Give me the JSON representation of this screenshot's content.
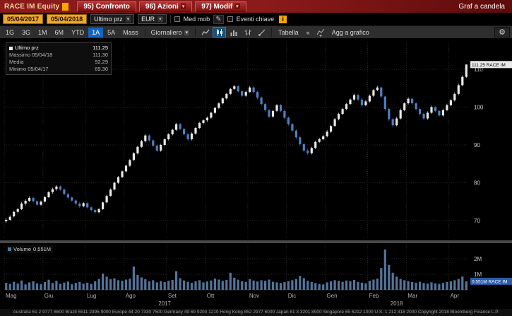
{
  "top_bar": {
    "security": "RACE IM Equity",
    "menu_items": [
      {
        "label": "95) Confronto",
        "has_dropdown": false
      },
      {
        "label": "96) Azioni",
        "has_dropdown": true
      },
      {
        "label": "97) Modif",
        "has_dropdown": true
      }
    ],
    "right_label": "Graf a candela"
  },
  "controls": {
    "date_from": "05/04/2017",
    "date_to": "05/04/2018",
    "price_field": "Ultimo prz",
    "currency": "EUR",
    "med_mob_label": "Med mob",
    "eventi_label": "Eventi chiave",
    "info_label": "i"
  },
  "toolbar": {
    "periods": [
      "1G",
      "3G",
      "1M",
      "6M",
      "YTD",
      "1A",
      "5A",
      "Mass"
    ],
    "active_period": "1A",
    "frequency": "Giornaliero",
    "table_label": "Tabella",
    "collapse_label": "«",
    "add_chart_label": "Agg a grafico"
  },
  "legend": {
    "last_label": "Ultimo prz",
    "last_value": "111.25",
    "high_label": "Massimo 05/04/18",
    "high_value": "111.30",
    "mean_label": "Media",
    "mean_value": "92.29",
    "low_label": "Minimo 05/04/17",
    "low_value": "69.30"
  },
  "price_axis": {
    "ticks": [
      70,
      80,
      90,
      100,
      110
    ],
    "last_price_label": "111.25 RACE IM"
  },
  "volume": {
    "legend_label": "Volume",
    "legend_value": "0.551M",
    "ticks": [
      {
        "label": "1M",
        "value": 1
      },
      {
        "label": "2M",
        "value": 2
      }
    ],
    "last_label": "0.551M RACE IM"
  },
  "x_axis": {
    "months": [
      "Mag",
      "Giu",
      "Lug",
      "Ago",
      "Set",
      "Ott",
      "Nov",
      "Dic",
      "Gen",
      "Feb",
      "Mar",
      "Apr"
    ],
    "years": [
      "2017",
      "2018"
    ]
  },
  "footer_text": "Australia 61 2 9777 8600 Brazil 5511 2395 9000 Europe 44 20 7330 7500 Germany 49 69 9204 1210 Hong Kong 852 2977 6000 Japan 81 3 3201 8900 Singapore 65 6212 1000 U.S. 1 212 318 2000 Copyright 2018 Bloomberg Finance L.P.",
  "colors": {
    "accent_blue": "#1565c0",
    "amber": "#f7a600",
    "topbar_red": "#8b1a1a"
  },
  "chart_data": {
    "type": "candlestick+volume",
    "title": "RACE IM Equity — Graf a candela (1A, Giornaliero)",
    "currency": "EUR",
    "price_range": [
      65,
      117
    ],
    "volume_range_m": [
      0,
      2.6
    ],
    "up_color": "#e8e8e8",
    "down_color": "#4f7fc2",
    "volume_color": "#54749c",
    "month_start_indices": [
      0,
      10,
      21,
      31,
      42,
      52,
      63,
      73,
      83,
      94,
      104,
      115
    ],
    "candles": [
      [
        69.8,
        70.6,
        69.3,
        70.2
      ],
      [
        70.2,
        71.4,
        69.9,
        71.0
      ],
      [
        71.1,
        72.6,
        70.8,
        72.3
      ],
      [
        72.3,
        73.4,
        71.9,
        73.0
      ],
      [
        73.0,
        74.9,
        72.8,
        74.5
      ],
      [
        74.5,
        75.6,
        74.0,
        75.2
      ],
      [
        75.2,
        76.4,
        74.9,
        76.0
      ],
      [
        76.0,
        76.3,
        74.8,
        75.1
      ],
      [
        75.1,
        75.4,
        73.9,
        74.2
      ],
      [
        74.2,
        75.3,
        73.9,
        75.0
      ],
      [
        75.0,
        76.5,
        74.8,
        76.2
      ],
      [
        76.2,
        77.8,
        76.0,
        77.5
      ],
      [
        77.5,
        78.7,
        77.1,
        78.3
      ],
      [
        78.3,
        79.4,
        77.9,
        79.0
      ],
      [
        79.0,
        79.3,
        77.9,
        78.2
      ],
      [
        78.2,
        78.5,
        76.7,
        77.0
      ],
      [
        77.0,
        77.3,
        75.8,
        76.1
      ],
      [
        76.1,
        76.4,
        75.0,
        75.3
      ],
      [
        75.3,
        75.6,
        74.2,
        74.5
      ],
      [
        74.5,
        74.8,
        73.4,
        73.8
      ],
      [
        73.8,
        74.9,
        73.5,
        74.6
      ],
      [
        74.6,
        74.8,
        73.2,
        73.5
      ],
      [
        73.5,
        73.8,
        72.4,
        72.8
      ],
      [
        72.8,
        73.1,
        71.8,
        72.2
      ],
      [
        72.2,
        73.3,
        71.9,
        73.0
      ],
      [
        73.0,
        75.0,
        72.8,
        74.8
      ],
      [
        74.8,
        76.8,
        74.6,
        76.5
      ],
      [
        76.5,
        78.5,
        76.3,
        78.2
      ],
      [
        78.2,
        80.3,
        78.0,
        80.0
      ],
      [
        80.0,
        81.8,
        79.7,
        81.5
      ],
      [
        81.5,
        83.3,
        81.2,
        83.0
      ],
      [
        83.0,
        84.8,
        82.7,
        84.5
      ],
      [
        84.5,
        86.3,
        84.2,
        86.0
      ],
      [
        86.0,
        88.1,
        85.8,
        87.8
      ],
      [
        87.8,
        89.8,
        87.5,
        89.5
      ],
      [
        89.5,
        91.3,
        89.2,
        91.0
      ],
      [
        91.0,
        92.8,
        90.7,
        92.5
      ],
      [
        92.5,
        92.8,
        90.9,
        91.2
      ],
      [
        91.2,
        91.5,
        89.5,
        89.8
      ],
      [
        89.8,
        90.1,
        88.1,
        88.5
      ],
      [
        88.5,
        90.3,
        88.2,
        90.0
      ],
      [
        90.0,
        91.8,
        89.7,
        91.5
      ],
      [
        91.5,
        93.1,
        91.2,
        92.8
      ],
      [
        92.8,
        94.3,
        92.5,
        94.0
      ],
      [
        94.0,
        95.8,
        93.7,
        95.5
      ],
      [
        95.5,
        95.8,
        93.9,
        94.2
      ],
      [
        94.2,
        94.5,
        92.5,
        92.8
      ],
      [
        92.8,
        93.1,
        91.1,
        91.5
      ],
      [
        91.5,
        93.3,
        91.2,
        93.0
      ],
      [
        93.0,
        94.8,
        92.7,
        94.5
      ],
      [
        94.5,
        96.1,
        94.2,
        95.8
      ],
      [
        95.8,
        96.8,
        95.4,
        96.5
      ],
      [
        96.5,
        97.5,
        96.1,
        97.2
      ],
      [
        97.2,
        98.8,
        96.9,
        98.5
      ],
      [
        98.5,
        100.1,
        98.2,
        99.8
      ],
      [
        99.8,
        101.3,
        99.5,
        101.0
      ],
      [
        101.0,
        102.6,
        100.7,
        102.3
      ],
      [
        102.3,
        103.8,
        102.0,
        103.5
      ],
      [
        103.5,
        105.1,
        103.2,
        104.8
      ],
      [
        104.8,
        105.9,
        104.5,
        105.5
      ],
      [
        105.5,
        105.8,
        103.9,
        104.2
      ],
      [
        104.2,
        104.5,
        102.6,
        103.0
      ],
      [
        103.0,
        104.4,
        102.7,
        104.0
      ],
      [
        104.0,
        105.6,
        103.8,
        105.2
      ],
      [
        105.2,
        105.5,
        103.6,
        104.0
      ],
      [
        104.0,
        104.3,
        102.1,
        102.5
      ],
      [
        102.5,
        102.8,
        100.4,
        100.8
      ],
      [
        100.8,
        101.1,
        98.8,
        99.2
      ],
      [
        99.2,
        99.5,
        97.1,
        97.5
      ],
      [
        97.5,
        99.3,
        97.2,
        99.0
      ],
      [
        99.0,
        100.8,
        98.7,
        100.5
      ],
      [
        100.5,
        100.8,
        98.6,
        99.0
      ],
      [
        99.0,
        99.3,
        96.8,
        97.2
      ],
      [
        97.2,
        97.5,
        95.1,
        95.5
      ],
      [
        95.5,
        95.8,
        93.4,
        93.8
      ],
      [
        93.8,
        94.1,
        91.6,
        92.0
      ],
      [
        92.0,
        92.3,
        89.8,
        90.2
      ],
      [
        90.2,
        90.5,
        88.1,
        88.5
      ],
      [
        88.5,
        88.9,
        87.3,
        87.8
      ],
      [
        87.8,
        89.5,
        87.5,
        89.2
      ],
      [
        89.2,
        91.1,
        88.9,
        90.8
      ],
      [
        90.8,
        91.9,
        90.5,
        91.5
      ],
      [
        91.5,
        92.7,
        91.2,
        92.3
      ],
      [
        92.3,
        93.9,
        92.0,
        93.5
      ],
      [
        93.5,
        95.3,
        93.2,
        95.0
      ],
      [
        95.0,
        97.1,
        94.8,
        96.8
      ],
      [
        96.8,
        98.5,
        96.5,
        98.2
      ],
      [
        98.2,
        99.8,
        97.9,
        99.5
      ],
      [
        99.5,
        101.1,
        99.2,
        100.8
      ],
      [
        100.8,
        102.3,
        100.5,
        102.0
      ],
      [
        102.0,
        103.5,
        101.7,
        103.2
      ],
      [
        103.2,
        103.5,
        101.6,
        102.0
      ],
      [
        102.0,
        102.3,
        100.1,
        100.5
      ],
      [
        100.5,
        101.9,
        100.2,
        101.5
      ],
      [
        101.5,
        103.3,
        101.2,
        103.0
      ],
      [
        103.0,
        104.8,
        102.7,
        104.5
      ],
      [
        104.5,
        105.6,
        104.2,
        105.2
      ],
      [
        105.2,
        105.4,
        102.4,
        102.8
      ],
      [
        102.8,
        103.0,
        99.0,
        99.5
      ],
      [
        99.5,
        99.8,
        96.3,
        96.8
      ],
      [
        96.8,
        97.1,
        94.7,
        95.2
      ],
      [
        95.2,
        97.4,
        94.9,
        97.0
      ],
      [
        97.0,
        99.6,
        96.7,
        99.2
      ],
      [
        99.2,
        101.3,
        98.9,
        101.0
      ],
      [
        101.0,
        102.6,
        100.7,
        102.2
      ],
      [
        102.2,
        102.5,
        100.6,
        101.0
      ],
      [
        101.0,
        101.3,
        99.1,
        99.5
      ],
      [
        99.5,
        99.8,
        97.8,
        98.2
      ],
      [
        98.2,
        98.5,
        96.6,
        97.0
      ],
      [
        97.0,
        98.9,
        96.7,
        98.5
      ],
      [
        98.5,
        100.4,
        98.2,
        100.0
      ],
      [
        100.0,
        100.3,
        98.6,
        99.0
      ],
      [
        99.0,
        99.3,
        97.4,
        97.8
      ],
      [
        97.8,
        99.6,
        97.5,
        99.2
      ],
      [
        99.2,
        100.9,
        98.9,
        100.5
      ],
      [
        100.5,
        102.2,
        100.2,
        101.8
      ],
      [
        101.8,
        103.9,
        101.5,
        103.5
      ],
      [
        103.5,
        106.2,
        103.2,
        105.8
      ],
      [
        105.8,
        108.4,
        105.5,
        108.0
      ],
      [
        108.0,
        111.3,
        107.7,
        111.25
      ]
    ],
    "volumes": [
      0.45,
      0.38,
      0.52,
      0.41,
      0.6,
      0.35,
      0.48,
      0.55,
      0.42,
      0.37,
      0.5,
      0.65,
      0.44,
      0.58,
      0.39,
      0.47,
      0.53,
      0.36,
      0.44,
      0.51,
      0.4,
      0.46,
      0.38,
      0.55,
      0.7,
      1.05,
      0.85,
      0.68,
      0.74,
      0.62,
      0.58,
      0.66,
      0.72,
      1.5,
      0.95,
      0.8,
      0.68,
      0.55,
      0.62,
      0.48,
      0.56,
      0.5,
      0.58,
      0.64,
      1.2,
      0.75,
      0.6,
      0.52,
      0.45,
      0.55,
      0.62,
      0.48,
      0.54,
      0.6,
      0.72,
      0.66,
      0.58,
      0.64,
      1.1,
      0.78,
      0.65,
      0.55,
      0.5,
      0.68,
      0.6,
      0.54,
      0.62,
      0.58,
      0.66,
      0.52,
      0.48,
      0.44,
      0.5,
      0.56,
      0.62,
      0.7,
      0.9,
      0.75,
      0.58,
      0.5,
      0.44,
      0.38,
      0.35,
      0.48,
      0.55,
      0.62,
      0.58,
      0.52,
      0.6,
      0.56,
      0.64,
      0.5,
      0.46,
      0.42,
      0.58,
      0.66,
      0.72,
      1.4,
      2.6,
      1.6,
      1.1,
      0.85,
      0.7,
      0.62,
      0.56,
      0.5,
      0.46,
      0.52,
      0.44,
      0.4,
      0.48,
      0.42,
      0.38,
      0.44,
      0.5,
      0.55,
      0.62,
      0.7,
      0.85,
      0.551
    ]
  }
}
